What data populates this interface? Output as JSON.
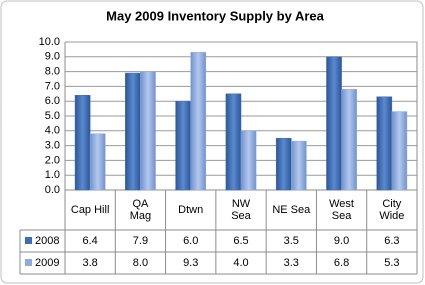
{
  "chart_data": {
    "type": "bar",
    "title": "May 2009 Inventory Supply by Area",
    "categories": [
      "Cap Hill",
      "QA\nMag",
      "Dtwn",
      "NW\nSea",
      "NE Sea",
      "West\nSea",
      "City\nWide"
    ],
    "series": [
      {
        "name": "2008",
        "color": "#3d6db4",
        "values": [
          6.4,
          7.9,
          6.0,
          6.5,
          3.5,
          9.0,
          6.3
        ],
        "value_labels": [
          "6.4",
          "7.9",
          "6.0",
          "6.5",
          "3.5",
          "9.0",
          "6.3"
        ]
      },
      {
        "name": "2009",
        "color": "#8faade",
        "values": [
          3.8,
          8.0,
          9.3,
          4.0,
          3.3,
          6.8,
          5.3
        ],
        "value_labels": [
          "3.8",
          "8.0",
          "9.3",
          "4.0",
          "3.3",
          "6.8",
          "5.3"
        ]
      }
    ],
    "ylim": [
      0,
      10
    ],
    "yticks": [
      {
        "value": 0,
        "label": "0.0"
      },
      {
        "value": 1,
        "label": "1.0"
      },
      {
        "value": 2,
        "label": "2.0"
      },
      {
        "value": 3,
        "label": "3.0"
      },
      {
        "value": 4,
        "label": "4.0"
      },
      {
        "value": 5,
        "label": "5.0"
      },
      {
        "value": 6,
        "label": "6.0"
      },
      {
        "value": 7,
        "label": "7.0"
      },
      {
        "value": 8,
        "label": "8.0"
      },
      {
        "value": 9,
        "label": "9.0"
      },
      {
        "value": 10,
        "label": "10.0"
      }
    ],
    "grid": true
  }
}
